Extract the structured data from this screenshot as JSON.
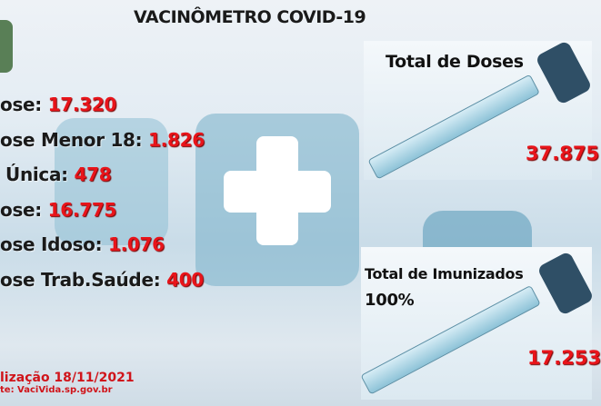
{
  "title": "VACINÔMETRO COVID-19",
  "stats": [
    {
      "label": "ose: ",
      "value": "17.320"
    },
    {
      "label": "ose Menor 18: ",
      "value": "1.826"
    },
    {
      "label": "Única: ",
      "value": "478"
    },
    {
      "label": "ose: ",
      "value": "16.775"
    },
    {
      "label": "ose Idoso: ",
      "value": "1.076"
    },
    {
      "label": "ose Trab.Saúde: ",
      "value": "400"
    }
  ],
  "total_doses": {
    "label": "Total de Doses",
    "value": "37.875"
  },
  "total_imunizados": {
    "label": "Total de Imunizados",
    "percent": "100%",
    "value": "17.253"
  },
  "footer": {
    "update": "lização 18/11/2021",
    "source": "te: VaciVida.sp.gov.br"
  },
  "colors": {
    "accent": "#e8141a",
    "text": "#1a1a1a"
  }
}
